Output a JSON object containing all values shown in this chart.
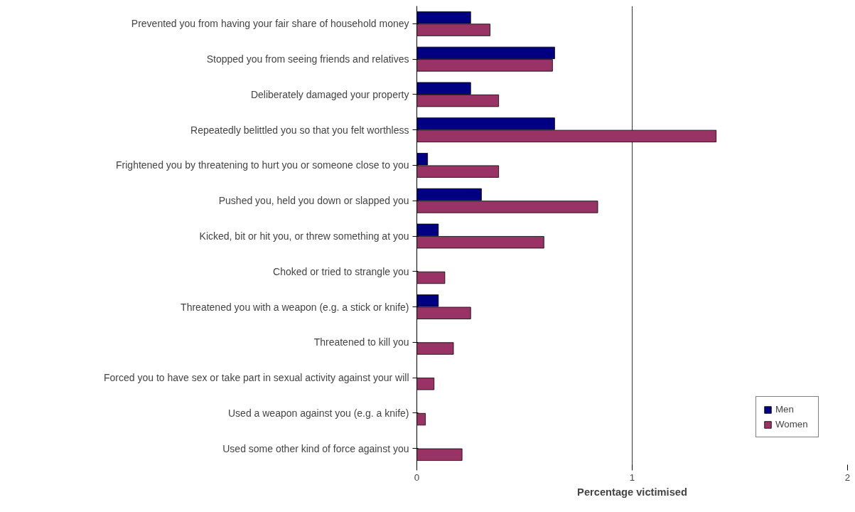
{
  "chart_data": {
    "type": "bar",
    "orientation": "horizontal",
    "xlabel": "Percentage victimised",
    "categories": [
      "Prevented you from having your fair share of household money",
      "Stopped you from seeing friends and relatives",
      "Deliberately damaged your property",
      "Repeatedly belittled you so that you felt worthless",
      "Frightened you by threatening to hurt you or someone close to you",
      "Pushed you, held you down or slapped you",
      "Kicked, bit or hit you, or threw something at you",
      "Choked or tried to strangle you",
      "Threatened you with a weapon (e.g. a stick or knife)",
      "Threatened to kill you",
      "Forced you to have sex or take part in sexual activity against your will",
      "Used a weapon against you (e.g. a knife)",
      "Used some other kind of force against you"
    ],
    "series": [
      {
        "name": "Men",
        "color": "#000080",
        "values": [
          0.25,
          0.64,
          0.25,
          0.64,
          0.05,
          0.3,
          0.1,
          null,
          0.1,
          null,
          null,
          null,
          null
        ]
      },
      {
        "name": "Women",
        "color": "#993366",
        "values": [
          0.34,
          0.63,
          0.38,
          1.39,
          0.38,
          0.84,
          0.59,
          0.13,
          0.25,
          0.17,
          0.08,
          0.04,
          0.21
        ]
      }
    ],
    "xlim": [
      0,
      2
    ],
    "xticks": [
      0,
      1,
      2
    ],
    "grid": "x",
    "legend": "bottom right"
  }
}
